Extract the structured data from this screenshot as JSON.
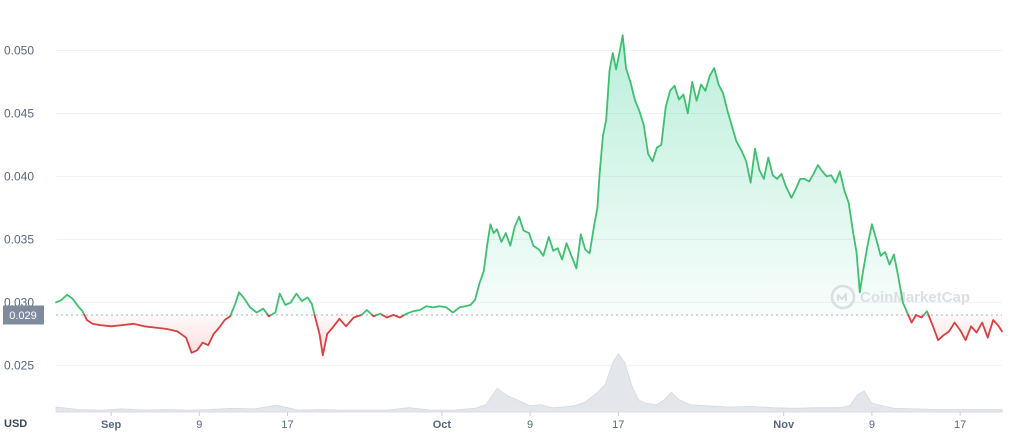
{
  "chart_data": {
    "type": "line",
    "currency": "USD",
    "watermark": "CoinMarketCap",
    "baseline_price": 0.029,
    "current_price_label": "0.029",
    "ylim": [
      0.0213,
      0.0521
    ],
    "y_ticks": [
      {
        "value": 0.025,
        "label": "0.025"
      },
      {
        "value": 0.03,
        "label": "0.030"
      },
      {
        "value": 0.035,
        "label": "0.035"
      },
      {
        "value": 0.04,
        "label": "0.040"
      },
      {
        "value": 0.045,
        "label": "0.045"
      },
      {
        "value": 0.05,
        "label": "0.050"
      }
    ],
    "x_ticks": [
      {
        "day": 5,
        "label": "Sep",
        "major": true
      },
      {
        "day": 13,
        "label": "9",
        "major": false
      },
      {
        "day": 21,
        "label": "17",
        "major": false
      },
      {
        "day": 35,
        "label": "Oct",
        "major": true
      },
      {
        "day": 43,
        "label": "9",
        "major": false
      },
      {
        "day": 51,
        "label": "17",
        "major": false
      },
      {
        "day": 66,
        "label": "Nov",
        "major": true
      },
      {
        "day": 74,
        "label": "9",
        "major": false
      },
      {
        "day": 82,
        "label": "17",
        "major": false
      }
    ],
    "xlim": [
      0,
      85.8
    ],
    "colors": {
      "up": "#16c784",
      "up_line": "#3fbf6f",
      "down_line": "#d94040",
      "up_fill": "#16c784",
      "down_fill": "#ea3943",
      "volume": "#e3e6eb",
      "grid": "#eff2f5",
      "label_bg": "#808a9d"
    },
    "price": [
      [
        0.0,
        0.03
      ],
      [
        0.5,
        0.0302
      ],
      [
        1.0,
        0.0306
      ],
      [
        1.5,
        0.0303
      ],
      [
        2.0,
        0.0297
      ],
      [
        2.4,
        0.0293
      ],
      [
        2.8,
        0.0286
      ],
      [
        3.3,
        0.0283
      ],
      [
        4.0,
        0.0282
      ],
      [
        5.0,
        0.0281
      ],
      [
        6.0,
        0.0282
      ],
      [
        7.0,
        0.0283
      ],
      [
        8.0,
        0.0281
      ],
      [
        9.0,
        0.028
      ],
      [
        10.0,
        0.0279
      ],
      [
        11.0,
        0.0277
      ],
      [
        11.8,
        0.0272
      ],
      [
        12.3,
        0.026
      ],
      [
        12.8,
        0.0262
      ],
      [
        13.3,
        0.0268
      ],
      [
        13.8,
        0.0266
      ],
      [
        14.3,
        0.0275
      ],
      [
        14.8,
        0.028
      ],
      [
        15.3,
        0.0286
      ],
      [
        15.8,
        0.0289
      ],
      [
        16.3,
        0.03
      ],
      [
        16.6,
        0.0308
      ],
      [
        17.0,
        0.0304
      ],
      [
        17.6,
        0.0296
      ],
      [
        18.2,
        0.0292
      ],
      [
        18.8,
        0.0295
      ],
      [
        19.3,
        0.0289
      ],
      [
        19.9,
        0.0292
      ],
      [
        20.3,
        0.0307
      ],
      [
        20.8,
        0.0298
      ],
      [
        21.3,
        0.03
      ],
      [
        21.8,
        0.0307
      ],
      [
        22.3,
        0.0301
      ],
      [
        22.8,
        0.0304
      ],
      [
        23.2,
        0.0299
      ],
      [
        23.6,
        0.0285
      ],
      [
        23.9,
        0.0275
      ],
      [
        24.2,
        0.0258
      ],
      [
        24.6,
        0.0275
      ],
      [
        25.1,
        0.028
      ],
      [
        25.7,
        0.0287
      ],
      [
        26.3,
        0.0281
      ],
      [
        27.0,
        0.0288
      ],
      [
        27.7,
        0.029
      ],
      [
        28.2,
        0.0294
      ],
      [
        28.8,
        0.0289
      ],
      [
        29.4,
        0.0291
      ],
      [
        30.0,
        0.0288
      ],
      [
        30.6,
        0.029
      ],
      [
        31.2,
        0.0288
      ],
      [
        31.8,
        0.0291
      ],
      [
        32.4,
        0.0293
      ],
      [
        33.0,
        0.0294
      ],
      [
        33.6,
        0.0297
      ],
      [
        34.2,
        0.0296
      ],
      [
        34.8,
        0.0297
      ],
      [
        35.4,
        0.0296
      ],
      [
        36.0,
        0.0292
      ],
      [
        36.6,
        0.0296
      ],
      [
        37.1,
        0.0297
      ],
      [
        37.6,
        0.0298
      ],
      [
        38.0,
        0.0302
      ],
      [
        38.4,
        0.0315
      ],
      [
        38.8,
        0.0325
      ],
      [
        39.1,
        0.0345
      ],
      [
        39.4,
        0.0362
      ],
      [
        39.7,
        0.0355
      ],
      [
        40.0,
        0.0358
      ],
      [
        40.4,
        0.0348
      ],
      [
        40.8,
        0.0355
      ],
      [
        41.2,
        0.0345
      ],
      [
        41.6,
        0.036
      ],
      [
        42.0,
        0.0368
      ],
      [
        42.4,
        0.0357
      ],
      [
        42.9,
        0.0355
      ],
      [
        43.3,
        0.0345
      ],
      [
        43.8,
        0.0342
      ],
      [
        44.2,
        0.0337
      ],
      [
        44.7,
        0.0352
      ],
      [
        45.1,
        0.0341
      ],
      [
        45.5,
        0.0343
      ],
      [
        45.9,
        0.0334
      ],
      [
        46.3,
        0.0347
      ],
      [
        46.7,
        0.0338
      ],
      [
        47.2,
        0.0327
      ],
      [
        47.6,
        0.0354
      ],
      [
        48.0,
        0.0342
      ],
      [
        48.4,
        0.0339
      ],
      [
        48.8,
        0.0361
      ],
      [
        49.1,
        0.0375
      ],
      [
        49.3,
        0.0402
      ],
      [
        49.6,
        0.0432
      ],
      [
        49.9,
        0.0445
      ],
      [
        50.2,
        0.0484
      ],
      [
        50.5,
        0.0498
      ],
      [
        50.8,
        0.0485
      ],
      [
        51.1,
        0.0498
      ],
      [
        51.4,
        0.0512
      ],
      [
        51.7,
        0.0486
      ],
      [
        52.1,
        0.0475
      ],
      [
        52.5,
        0.0461
      ],
      [
        52.9,
        0.0452
      ],
      [
        53.3,
        0.0441
      ],
      [
        53.7,
        0.0418
      ],
      [
        54.1,
        0.0412
      ],
      [
        54.5,
        0.0423
      ],
      [
        54.9,
        0.0425
      ],
      [
        55.3,
        0.0455
      ],
      [
        55.7,
        0.0468
      ],
      [
        56.1,
        0.0472
      ],
      [
        56.5,
        0.0461
      ],
      [
        56.9,
        0.0465
      ],
      [
        57.3,
        0.045
      ],
      [
        57.7,
        0.0475
      ],
      [
        58.1,
        0.046
      ],
      [
        58.5,
        0.0473
      ],
      [
        58.9,
        0.0468
      ],
      [
        59.3,
        0.048
      ],
      [
        59.7,
        0.0486
      ],
      [
        60.1,
        0.0473
      ],
      [
        60.5,
        0.0466
      ],
      [
        60.9,
        0.0452
      ],
      [
        61.3,
        0.044
      ],
      [
        61.7,
        0.0428
      ],
      [
        62.2,
        0.042
      ],
      [
        62.6,
        0.0412
      ],
      [
        63.0,
        0.0395
      ],
      [
        63.4,
        0.0422
      ],
      [
        63.8,
        0.0405
      ],
      [
        64.2,
        0.0398
      ],
      [
        64.6,
        0.0415
      ],
      [
        65.0,
        0.0401
      ],
      [
        65.4,
        0.0398
      ],
      [
        65.8,
        0.0402
      ],
      [
        66.2,
        0.0392
      ],
      [
        66.7,
        0.0383
      ],
      [
        67.1,
        0.039
      ],
      [
        67.5,
        0.0398
      ],
      [
        67.9,
        0.0398
      ],
      [
        68.3,
        0.0396
      ],
      [
        68.7,
        0.0402
      ],
      [
        69.1,
        0.0409
      ],
      [
        69.5,
        0.0404
      ],
      [
        69.9,
        0.04
      ],
      [
        70.3,
        0.0401
      ],
      [
        70.7,
        0.0395
      ],
      [
        71.1,
        0.0404
      ],
      [
        71.5,
        0.0389
      ],
      [
        71.9,
        0.0379
      ],
      [
        72.3,
        0.0355
      ],
      [
        72.6,
        0.034
      ],
      [
        72.9,
        0.0308
      ],
      [
        73.2,
        0.0325
      ],
      [
        73.6,
        0.0345
      ],
      [
        74.0,
        0.0362
      ],
      [
        74.4,
        0.035
      ],
      [
        74.8,
        0.0337
      ],
      [
        75.2,
        0.034
      ],
      [
        75.6,
        0.033
      ],
      [
        76.0,
        0.0338
      ],
      [
        76.4,
        0.032
      ],
      [
        76.8,
        0.03
      ],
      [
        77.2,
        0.0292
      ],
      [
        77.6,
        0.0284
      ],
      [
        78.0,
        0.029
      ],
      [
        78.5,
        0.0288
      ],
      [
        79.0,
        0.0293
      ],
      [
        79.5,
        0.0282
      ],
      [
        80.0,
        0.027
      ],
      [
        80.5,
        0.0274
      ],
      [
        81.0,
        0.0277
      ],
      [
        81.5,
        0.0284
      ],
      [
        82.0,
        0.0278
      ],
      [
        82.5,
        0.027
      ],
      [
        83.0,
        0.0281
      ],
      [
        83.5,
        0.0276
      ],
      [
        84.0,
        0.0284
      ],
      [
        84.5,
        0.0272
      ],
      [
        85.0,
        0.0286
      ],
      [
        85.5,
        0.0281
      ],
      [
        85.8,
        0.0277
      ]
    ],
    "volume": [
      [
        0,
        0.4
      ],
      [
        2,
        0.2
      ],
      [
        4,
        0.15
      ],
      [
        6,
        0.25
      ],
      [
        8,
        0.15
      ],
      [
        10,
        0.2
      ],
      [
        12,
        0.15
      ],
      [
        14,
        0.2
      ],
      [
        16,
        0.3
      ],
      [
        18,
        0.25
      ],
      [
        20,
        0.55
      ],
      [
        22,
        0.15
      ],
      [
        24,
        0.2
      ],
      [
        26,
        0.15
      ],
      [
        28,
        0.15
      ],
      [
        30,
        0.15
      ],
      [
        32,
        0.35
      ],
      [
        34,
        0.15
      ],
      [
        36,
        0.15
      ],
      [
        38,
        0.3
      ],
      [
        39,
        0.6
      ],
      [
        40,
        1.9
      ],
      [
        41,
        1.3
      ],
      [
        42,
        0.9
      ],
      [
        43,
        0.5
      ],
      [
        44,
        0.6
      ],
      [
        45,
        0.35
      ],
      [
        46,
        0.4
      ],
      [
        47,
        0.5
      ],
      [
        48,
        0.8
      ],
      [
        49,
        1.5
      ],
      [
        49.8,
        2.2
      ],
      [
        50.5,
        4.0
      ],
      [
        51.0,
        4.7
      ],
      [
        51.6,
        4.0
      ],
      [
        52.2,
        2.2
      ],
      [
        52.8,
        1.0
      ],
      [
        53.5,
        0.7
      ],
      [
        54.5,
        0.6
      ],
      [
        55.2,
        1.0
      ],
      [
        55.8,
        1.6
      ],
      [
        56.5,
        1.0
      ],
      [
        57.5,
        0.6
      ],
      [
        59,
        0.5
      ],
      [
        61,
        0.4
      ],
      [
        63,
        0.45
      ],
      [
        65,
        0.35
      ],
      [
        67,
        0.3
      ],
      [
        69,
        0.35
      ],
      [
        71,
        0.35
      ],
      [
        72,
        0.5
      ],
      [
        72.7,
        1.4
      ],
      [
        73.3,
        1.7
      ],
      [
        74,
        0.7
      ],
      [
        76,
        0.3
      ],
      [
        78,
        0.25
      ],
      [
        80,
        0.2
      ],
      [
        82,
        0.2
      ],
      [
        84,
        0.2
      ],
      [
        85.8,
        0.2
      ]
    ],
    "volume_max": 5.0
  }
}
